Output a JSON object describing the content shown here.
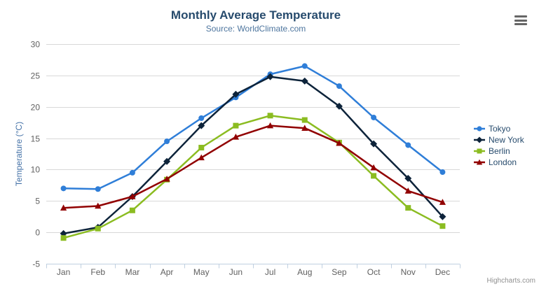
{
  "chart_data": {
    "type": "line",
    "title": "Monthly Average Temperature",
    "subtitle": "Source: WorldClimate.com",
    "categories": [
      "Jan",
      "Feb",
      "Mar",
      "Apr",
      "May",
      "Jun",
      "Jul",
      "Aug",
      "Sep",
      "Oct",
      "Nov",
      "Dec"
    ],
    "xlabel": "",
    "ylabel": "Temperature (°C)",
    "ylim": [
      -5,
      30
    ],
    "ytick_step": 5,
    "yticks": [
      "-5",
      "0",
      "5",
      "10",
      "15",
      "20",
      "25",
      "30"
    ],
    "grid": true,
    "legend_position": "right",
    "series": [
      {
        "name": "Tokyo",
        "color": "#2f7ed8",
        "marker": "circle",
        "values": [
          7.0,
          6.9,
          9.5,
          14.5,
          18.2,
          21.5,
          25.2,
          26.5,
          23.3,
          18.3,
          13.9,
          9.6
        ]
      },
      {
        "name": "New York",
        "color": "#0d233a",
        "marker": "diamond",
        "values": [
          -0.2,
          0.8,
          5.7,
          11.3,
          17.0,
          22.0,
          24.8,
          24.1,
          20.1,
          14.1,
          8.6,
          2.5
        ]
      },
      {
        "name": "Berlin",
        "color": "#8bbc21",
        "marker": "square",
        "values": [
          -0.9,
          0.6,
          3.5,
          8.4,
          13.5,
          17.0,
          18.6,
          17.9,
          14.3,
          9.0,
          3.9,
          1.0
        ]
      },
      {
        "name": "London",
        "color": "#910000",
        "marker": "triangle",
        "values": [
          3.9,
          4.2,
          5.7,
          8.5,
          11.9,
          15.2,
          17.0,
          16.6,
          14.2,
          10.3,
          6.6,
          4.8
        ]
      }
    ],
    "credits": "Highcharts.com",
    "colors": {
      "title": "#274b6d",
      "subtitle": "#4d759e",
      "axis_title": "#4572a7",
      "tick_label": "#606060",
      "grid_line": "#d8d8d8",
      "axis_line": "#c0d0e0",
      "legend_text": "#274b6d",
      "credits": "#909090",
      "background": "#ffffff"
    },
    "context_menu_icon": "hamburger-menu-icon"
  }
}
